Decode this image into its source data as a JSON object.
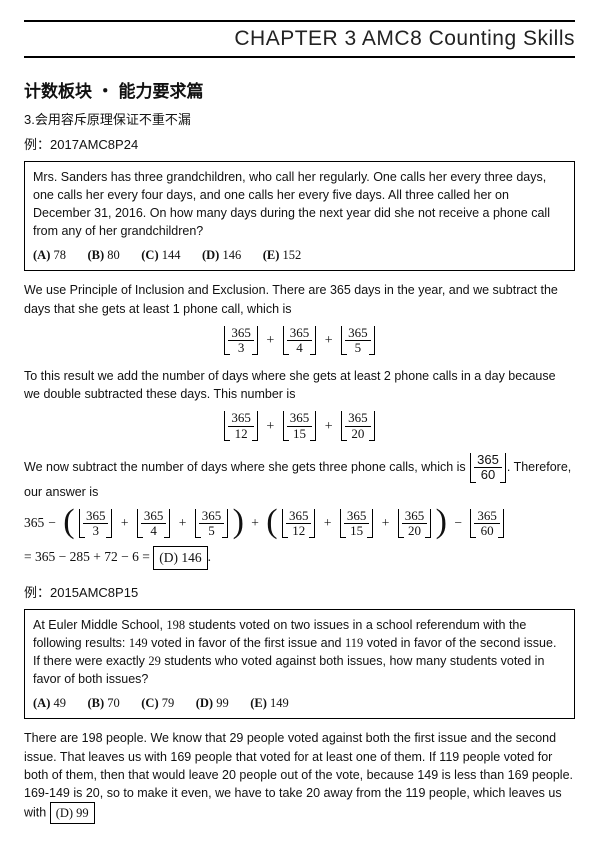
{
  "chapter_header": "CHAPTER 3 AMC8 Counting Skills",
  "section_title": "计数板块 ・ 能力要求篇",
  "subpoint": "3.会用容斥原理保证不重不漏",
  "ex1": {
    "label": "例：2017AMC8P24",
    "problem": "Mrs. Sanders has three grandchildren, who call her regularly. One calls her every three days, one calls her every four days, and one calls her every five days. All three called her on December 31, 2016. On how many days during the next year did she not receive a phone call from any of her grandchildren?",
    "choices": [
      {
        "letter": "(A)",
        "val": "78"
      },
      {
        "letter": "(B)",
        "val": "80"
      },
      {
        "letter": "(C)",
        "val": "144"
      },
      {
        "letter": "(D)",
        "val": "146"
      },
      {
        "letter": "(E)",
        "val": "152"
      }
    ],
    "sol_p1": "We use Principle of Inclusion and Exclusion. There are 365 days in the year, and we subtract the days that she gets at least 1 phone call, which is",
    "fracs1": [
      {
        "n": "365",
        "d": "3"
      },
      {
        "n": "365",
        "d": "4"
      },
      {
        "n": "365",
        "d": "5"
      }
    ],
    "sol_p2": "To this result we add the number of days where she gets at least 2 phone calls in a day because we double subtracted these days. This number is",
    "fracs2": [
      {
        "n": "365",
        "d": "12"
      },
      {
        "n": "365",
        "d": "15"
      },
      {
        "n": "365",
        "d": "20"
      }
    ],
    "sol_p3a": "We now subtract the number of days where she gets three phone calls, which is ",
    "frac3": {
      "n": "365",
      "d": "60"
    },
    "sol_p3b": ". Therefore, our answer is",
    "eq_prefix": "365",
    "eq_line2_a": "= 365 − 285 + 72 − 6 = ",
    "eq_answer": "(D) 146",
    "period": "."
  },
  "ex2": {
    "label": "例：2015AMC8P15",
    "problem_a": "At Euler Middle School, ",
    "n198": "198",
    "problem_b": " students voted on two issues in a school referendum with the following results: ",
    "n149": "149",
    "problem_c": " voted in favor of the first issue and ",
    "n119": "119",
    "problem_d": " voted in favor of the second issue. If there were exactly ",
    "n29": "29",
    "problem_e": " students who voted against both issues, how many students voted in favor of both issues?",
    "choices": [
      {
        "letter": "(A)",
        "val": "49"
      },
      {
        "letter": "(B)",
        "val": "70"
      },
      {
        "letter": "(C)",
        "val": "79"
      },
      {
        "letter": "(D)",
        "val": "99"
      },
      {
        "letter": "(E)",
        "val": "149"
      }
    ],
    "sol": "There are 198 people. We know that 29 people voted against both the first issue and the second issue. That leaves us with 169 people that voted for at least one of them. If 119 people voted for both of them, then that would leave 20 people out of the vote, because 149 is less than 169 people. 169-149 is 20, so to make it even, we have to take 20 away from the 119 people, which leaves us with ",
    "answer": "(D) 99"
  }
}
